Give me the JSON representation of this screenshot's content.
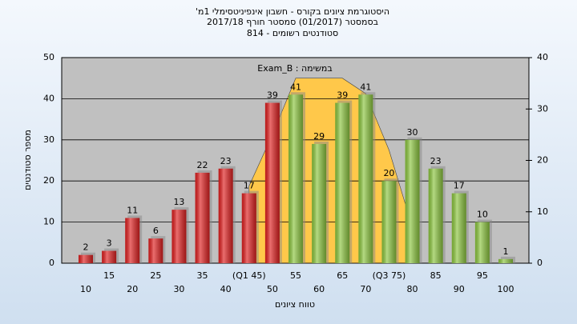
{
  "chart_data": {
    "type": "bar",
    "title": "היסטוגרמת ציונים בקורס - חשבון אינפיניטסימלי 1מ'",
    "subtitle": "בסמסטר (01/2017) סמסטר חורף 2017/18",
    "subtitle2": "סטודנטים רשומים - 814",
    "annotation": "במשימה : Exam_B",
    "ylabel": "מספר סטודנטים",
    "xlabel": "טווח ציונים",
    "categories": [
      "10",
      "15",
      "20",
      "25",
      "30",
      "35",
      "40",
      "(Q1 45)",
      "50",
      "55",
      "60",
      "65",
      "70",
      "(Q3 75)",
      "80",
      "85",
      "90",
      "95",
      "100"
    ],
    "values": [
      2,
      3,
      11,
      6,
      13,
      22,
      23,
      17,
      39,
      41,
      29,
      39,
      41,
      20,
      30,
      23,
      17,
      10,
      1
    ],
    "colors": [
      "#e02020",
      "#e02020",
      "#e02020",
      "#e02020",
      "#e02020",
      "#e02020",
      "#e02020",
      "#e02020",
      "#e02020",
      "#8cc63f",
      "#8cc63f",
      "#8cc63f",
      "#8cc63f",
      "#8cc63f",
      "#8cc63f",
      "#8cc63f",
      "#8cc63f",
      "#8cc63f",
      "#8cc63f"
    ],
    "area": {
      "axis": "y2",
      "color": "#ffc84a",
      "values": [
        null,
        null,
        null,
        null,
        null,
        null,
        null,
        15,
        25,
        36,
        36,
        36,
        33,
        22,
        7,
        null,
        null,
        null,
        null
      ]
    },
    "ylim": [
      0,
      50
    ],
    "yticks": [
      0,
      10,
      20,
      30,
      40,
      50
    ],
    "y2lim": [
      0,
      40
    ],
    "y2ticks": [
      0,
      10,
      20,
      30,
      40
    ],
    "grid": true
  }
}
